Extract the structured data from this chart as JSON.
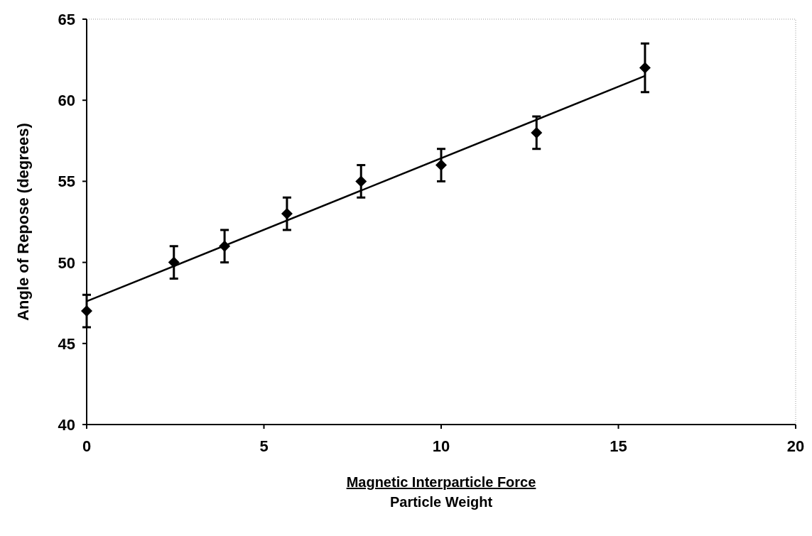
{
  "chart_data": {
    "type": "scatter",
    "xlabel": "Magnetic Interparticle Force\nParticle Weight",
    "ylabel": "Angle of Repose (degrees)",
    "xlim": [
      0,
      20
    ],
    "xticks": [
      0,
      5,
      10,
      15,
      20
    ],
    "ylim": [
      40,
      65
    ],
    "yticks": [
      40,
      45,
      50,
      55,
      60,
      65
    ],
    "grid": false,
    "series": [
      {
        "color": "#000000",
        "marker": "diamond",
        "x": [
          0,
          2.46,
          3.89,
          5.65,
          7.74,
          10.0,
          12.69,
          15.75
        ],
        "values": [
          47,
          50,
          51,
          53,
          55,
          56,
          58,
          62
        ],
        "errors": [
          1,
          1,
          1,
          1,
          1,
          1,
          1,
          1.5
        ]
      },
      {
        "type": "line",
        "color": "#000000",
        "x": [
          0,
          15.75
        ],
        "values": [
          47.6,
          61.5
        ]
      }
    ]
  }
}
